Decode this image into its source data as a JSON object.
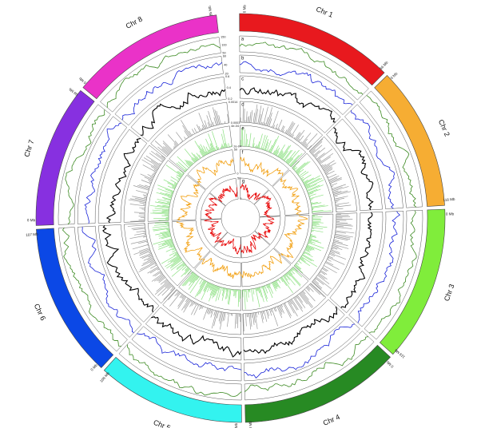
{
  "chart_data": {
    "type": "circos",
    "chromosomes": [
      {
        "label": "Chr 1",
        "start_label": "0 Mb",
        "end_label": "56 Mb",
        "color": "#e8191e",
        "start_frac": 0.0,
        "end_frac": 0.125
      },
      {
        "label": "Chr 2",
        "start_label": "0 Mb",
        "end_label": "118 Mb",
        "color": "#f6ad33",
        "start_frac": 0.128,
        "end_frac": 0.241
      },
      {
        "label": "Chr 3",
        "start_label": "0 Mb",
        "end_label": "119 Mb",
        "color": "#80ed3b",
        "start_frac": 0.244,
        "end_frac": 0.367
      },
      {
        "label": "Chr 4",
        "start_label": "0 Mb",
        "end_label": "113 Mb",
        "color": "#278a23",
        "start_frac": 0.37,
        "end_frac": 0.497
      },
      {
        "label": "Chr 5",
        "start_label": "0 Mb",
        "end_label": "108 Mb",
        "color": "#33f3ef",
        "start_frac": 0.5,
        "end_frac": 0.617
      },
      {
        "label": "Chr 6",
        "start_label": "0 Mb",
        "end_label": "107 Mb",
        "color": "#0b48e6",
        "start_frac": 0.62,
        "end_frac": 0.742
      },
      {
        "label": "Chr 7",
        "start_label": "0 Mb",
        "end_label": "98 Mb",
        "color": "#8730e0",
        "start_frac": 0.745,
        "end_frac": 0.858
      },
      {
        "label": "Chr 8",
        "start_label": "0 Mb",
        "end_label": "85 Mb",
        "color": "#ea32c8",
        "start_frac": 0.861,
        "end_frac": 0.982
      }
    ],
    "tracks": [
      {
        "id": "a",
        "type": "line",
        "color": "#3c8a22",
        "ticks": [
          "150",
          "100",
          "50"
        ],
        "ylim": [
          50,
          150
        ]
      },
      {
        "id": "b",
        "type": "line",
        "color": "#1722d8",
        "ticks": [
          "60",
          "40",
          "20"
        ],
        "ylim": [
          20,
          60
        ]
      },
      {
        "id": "c",
        "type": "line",
        "color": "#000000",
        "ticks": [
          "0.6",
          "0.4",
          "0.2"
        ],
        "ylim": [
          0.2,
          0.6
        ]
      },
      {
        "id": "d",
        "type": "bar",
        "color": "#9a9a9a",
        "ticks": [
          "0.0014",
          "0.0003"
        ],
        "ylim": [
          0.0003,
          0.0014
        ]
      },
      {
        "id": "e",
        "type": "bar",
        "color": "#8be080",
        "ticks": [
          "4e-04",
          "2e-04"
        ],
        "ylim": [
          0.0002,
          0.0004
        ]
      },
      {
        "id": "f",
        "type": "line",
        "color": "#f2a012",
        "ticks": [
          "50",
          "0"
        ],
        "ylim": [
          0,
          50
        ]
      },
      {
        "id": "g",
        "type": "line",
        "color": "#e81010",
        "ticks": [
          "50",
          "0"
        ],
        "ylim": [
          0,
          50
        ]
      }
    ]
  }
}
